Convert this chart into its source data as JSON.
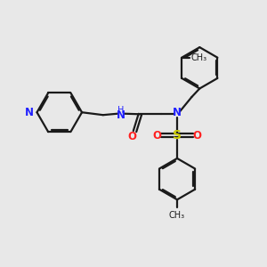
{
  "bg_color": "#e8e8e8",
  "bond_color": "#1a1a1a",
  "N_color": "#2020ff",
  "O_color": "#ff2020",
  "S_color": "#cccc00",
  "line_width": 1.6,
  "font_size": 8.5,
  "figsize": [
    3.0,
    3.0
  ],
  "dpi": 100,
  "xlim": [
    0,
    10
  ],
  "ylim": [
    0,
    10
  ]
}
